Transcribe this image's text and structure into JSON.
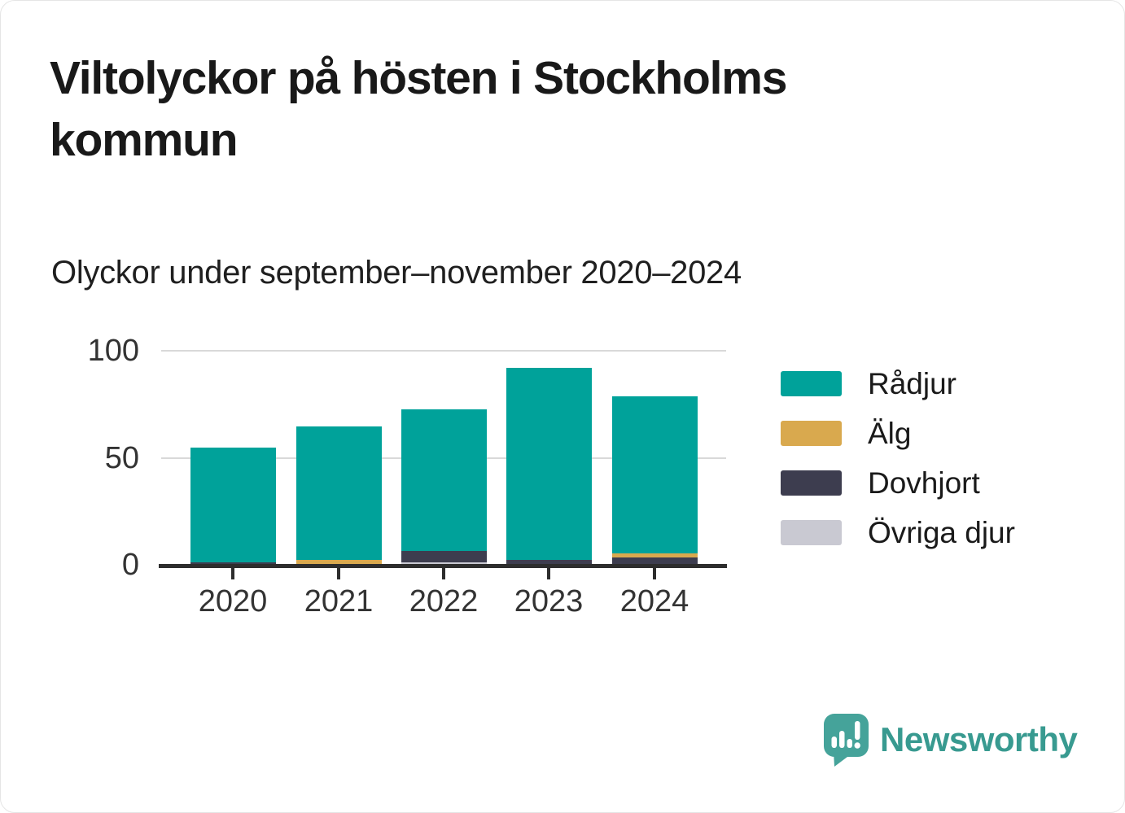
{
  "title": "Viltolyckor på hösten i Stockholms kommun",
  "subtitle": "Olyckor under september–november 2020–2024",
  "colors": {
    "radjur": "#00A29A",
    "alg": "#D9A94E",
    "dovhjort": "#3D3D4F",
    "ovriga_djur": "#C9C9D2",
    "axis": "#2D2D2D",
    "grid": "#D9D9D9",
    "logo_icon": "#45A39A",
    "logo_text": "#389A90"
  },
  "chart_data": {
    "type": "bar",
    "stacked": true,
    "title": "Viltolyckor på hösten i Stockholms kommun",
    "subtitle": "Olyckor under september–november 2020–2024",
    "categories": [
      "2020",
      "2021",
      "2022",
      "2023",
      "2024"
    ],
    "series": [
      {
        "name": "Rådjur",
        "color": "#00A29A",
        "values": [
          53,
          62,
          66,
          89,
          73
        ]
      },
      {
        "name": "Älg",
        "color": "#D9A94E",
        "values": [
          0,
          3,
          0,
          0,
          2
        ]
      },
      {
        "name": "Dovhjort",
        "color": "#3D3D4F",
        "values": [
          2,
          0,
          5,
          3,
          4
        ]
      },
      {
        "name": "Övriga djur",
        "color": "#C9C9D2",
        "values": [
          0,
          0,
          2,
          0,
          0
        ]
      }
    ],
    "stack_order_bottom_to_top": [
      "Övriga djur",
      "Dovhjort",
      "Älg",
      "Rådjur"
    ],
    "totals": [
      55,
      65,
      73,
      92,
      79
    ],
    "xlabel": "",
    "ylabel": "",
    "ylim": [
      0,
      100
    ],
    "yticks": [
      0,
      50,
      100
    ],
    "grid": "horizontal",
    "legend_position": "right"
  },
  "legend": {
    "items": [
      {
        "label": "Rådjur",
        "color_key": "radjur"
      },
      {
        "label": "Älg",
        "color_key": "alg"
      },
      {
        "label": "Dovhjort",
        "color_key": "dovhjort"
      },
      {
        "label": "Övriga djur",
        "color_key": "ovriga_djur"
      }
    ]
  },
  "footer": {
    "brand": "Newsworthy"
  }
}
